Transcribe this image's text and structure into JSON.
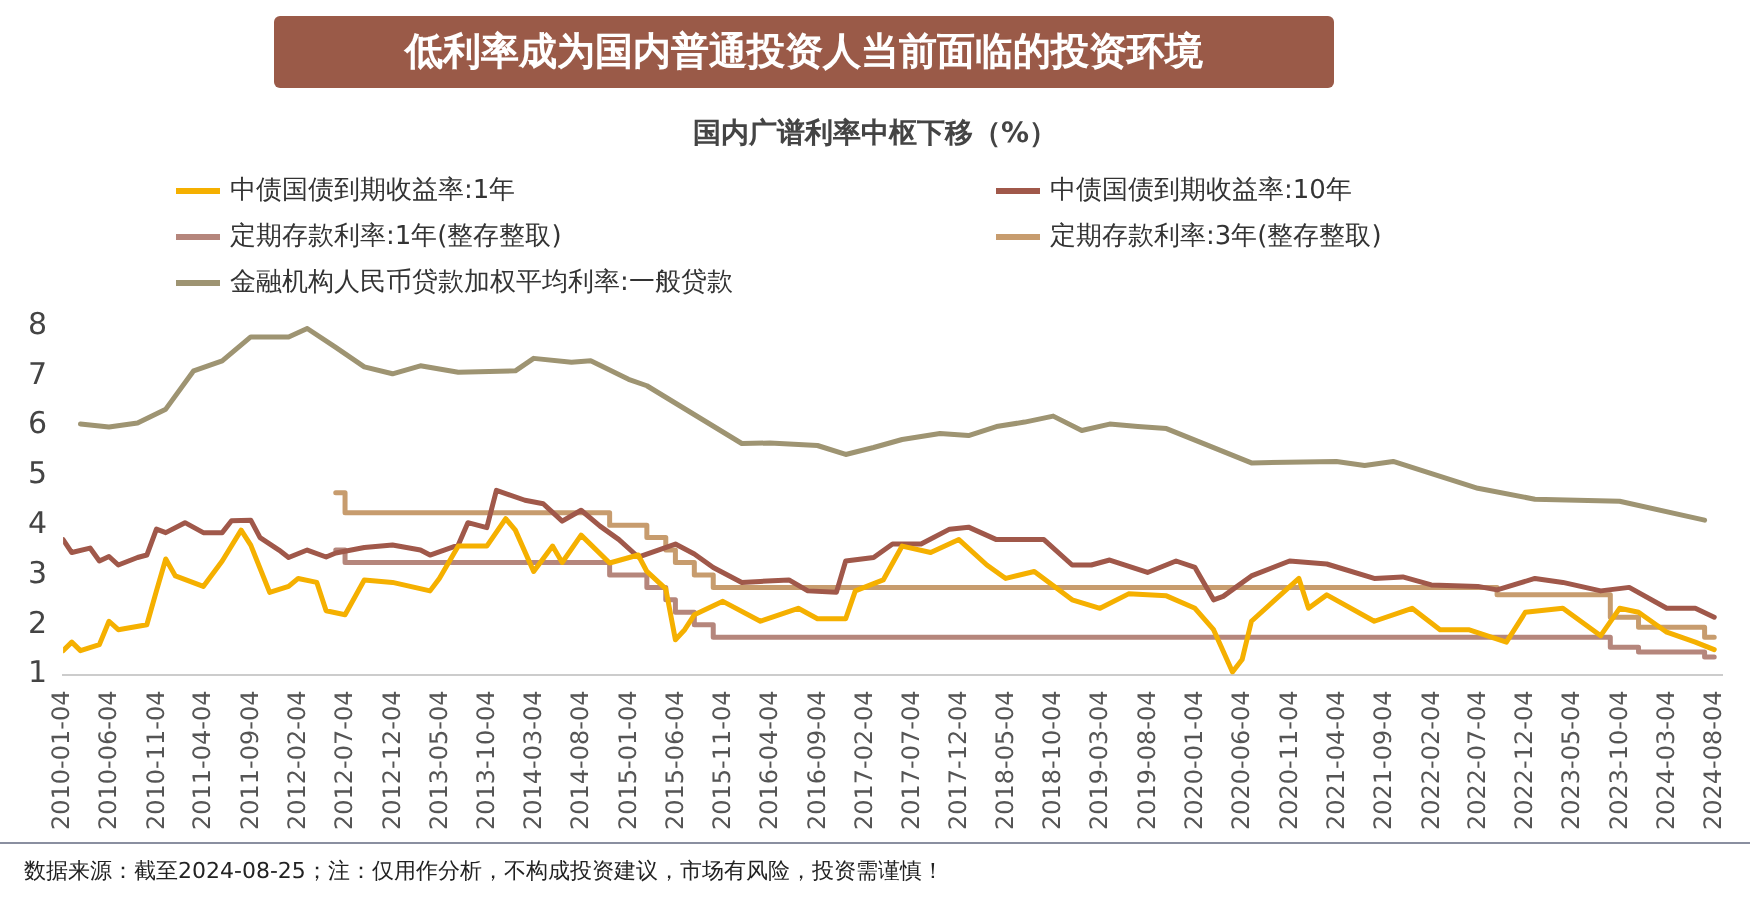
{
  "chart_data": {
    "type": "line",
    "title": "低利率成为国内普通投资人当前面临的投资环境",
    "subtitle": "国内广谱利率中枢下移（%）",
    "annotations": [
      "数据来源：截至2024-08-25；注：仅用作分析，不构成投资建议，市场有风险，投资需谨慎！"
    ],
    "legend": "top left",
    "grid": false,
    "marker": "none",
    "line_style": "solid",
    "xlim": [
      "2010-01-04",
      "2024-08-25"
    ],
    "xticks": [
      "2010-01-04",
      "2010-06-04",
      "2010-11-04",
      "2011-04-04",
      "2011-09-04",
      "2012-02-04",
      "2012-07-04",
      "2012-12-04",
      "2013-05-04",
      "2013-10-04",
      "2014-03-04",
      "2014-08-04",
      "2015-01-04",
      "2015-06-04",
      "2015-11-04",
      "2016-04-04",
      "2016-09-04",
      "2017-02-04",
      "2017-07-04",
      "2017-12-04",
      "2018-05-04",
      "2018-10-04",
      "2019-03-04",
      "2019-08-04",
      "2020-01-04",
      "2020-06-04",
      "2020-11-04",
      "2021-04-04",
      "2021-09-04",
      "2022-02-04",
      "2022-07-04",
      "2022-12-04",
      "2023-05-04",
      "2023-10-04",
      "2024-03-04",
      "2024-08-04"
    ],
    "ylim": [
      1,
      8
    ],
    "yticks": [
      1,
      2,
      3,
      4,
      5,
      6,
      7,
      8
    ],
    "series": [
      {
        "name": "中债国债到期收益率:1年",
        "color": "#f5b000",
        "x": [
          "2010-01-04",
          "2010-02",
          "2010-03",
          "2010-05",
          "2010-06",
          "2010-07",
          "2010-10",
          "2010-11",
          "2010-12",
          "2011-01",
          "2011-04",
          "2011-06",
          "2011-08",
          "2011-09",
          "2011-11",
          "2012-01",
          "2012-02",
          "2012-04",
          "2012-05",
          "2012-07",
          "2012-09",
          "2012-12",
          "2013-04",
          "2013-05",
          "2013-07",
          "2013-10",
          "2013-12",
          "2014-01",
          "2014-03",
          "2014-05",
          "2014-06",
          "2014-08",
          "2014-11",
          "2015-02",
          "2015-03",
          "2015-05",
          "2015-06",
          "2015-07",
          "2015-08",
          "2015-11",
          "2016-03",
          "2016-07",
          "2016-09",
          "2016-12",
          "2017-01",
          "2017-04",
          "2017-06",
          "2017-09",
          "2017-12",
          "2018-03",
          "2018-05",
          "2018-08",
          "2018-12",
          "2019-03",
          "2019-06",
          "2019-10",
          "2020-01",
          "2020-03",
          "2020-05",
          "2020-06",
          "2020-07",
          "2020-12",
          "2021-01",
          "2021-03",
          "2021-08",
          "2021-12",
          "2022-03",
          "2022-06",
          "2022-10",
          "2022-12",
          "2023-04",
          "2023-08",
          "2023-10",
          "2023-12",
          "2024-03",
          "2024-06",
          "2024-08"
        ],
        "values": [
          1.48,
          1.65,
          1.48,
          1.6,
          2.07,
          1.9,
          2.0,
          2.68,
          3.32,
          2.98,
          2.77,
          3.28,
          3.9,
          3.6,
          2.65,
          2.77,
          2.93,
          2.85,
          2.28,
          2.2,
          2.9,
          2.85,
          2.68,
          2.93,
          3.58,
          3.58,
          4.13,
          3.9,
          3.07,
          3.58,
          3.25,
          3.8,
          3.24,
          3.4,
          3.07,
          2.72,
          1.7,
          1.9,
          2.2,
          2.47,
          2.07,
          2.33,
          2.12,
          2.12,
          2.68,
          2.9,
          3.58,
          3.45,
          3.71,
          3.2,
          2.93,
          3.07,
          2.5,
          2.33,
          2.62,
          2.58,
          2.33,
          1.9,
          1.05,
          1.3,
          2.07,
          2.93,
          2.33,
          2.6,
          2.07,
          2.33,
          1.9,
          1.9,
          1.65,
          2.25,
          2.33,
          1.78,
          2.33,
          2.25,
          1.85,
          1.65,
          1.5
        ]
      },
      {
        "name": "中债国债到期收益率:10年",
        "color": "#a0584a",
        "x": [
          "2010-01-04",
          "2010-02",
          "2010-04",
          "2010-05",
          "2010-06",
          "2010-07",
          "2010-09",
          "2010-10",
          "2010-11",
          "2010-12",
          "2011-02",
          "2011-04",
          "2011-06",
          "2011-07",
          "2011-09",
          "2011-10",
          "2011-12",
          "2012-01",
          "2012-03",
          "2012-05",
          "2012-06",
          "2012-09",
          "2012-12",
          "2013-03",
          "2013-04",
          "2013-07",
          "2013-08",
          "2013-10",
          "2013-11",
          "2014-02",
          "2014-04",
          "2014-06",
          "2014-08",
          "2014-10",
          "2014-12",
          "2015-02",
          "2015-06",
          "2015-08",
          "2015-10",
          "2016-01",
          "2016-03",
          "2016-06",
          "2016-08",
          "2016-11",
          "2016-12",
          "2017-03",
          "2017-05",
          "2017-08",
          "2017-11",
          "2018-01",
          "2018-04",
          "2018-09",
          "2018-12",
          "2019-02",
          "2019-04",
          "2019-08",
          "2019-11",
          "2020-01",
          "2020-03",
          "2020-04",
          "2020-07",
          "2020-11",
          "2021-03",
          "2021-08",
          "2021-11",
          "2022-02",
          "2022-07",
          "2022-09",
          "2023-01",
          "2023-04",
          "2023-08",
          "2023-11",
          "2024-03",
          "2024-06",
          "2024-08"
        ],
        "values": [
          3.71,
          3.45,
          3.54,
          3.28,
          3.37,
          3.2,
          3.35,
          3.4,
          3.92,
          3.85,
          4.05,
          3.85,
          3.85,
          4.09,
          4.1,
          3.75,
          3.5,
          3.35,
          3.5,
          3.36,
          3.44,
          3.55,
          3.6,
          3.5,
          3.4,
          3.6,
          4.05,
          3.95,
          4.7,
          4.5,
          4.43,
          4.08,
          4.3,
          3.98,
          3.71,
          3.36,
          3.62,
          3.42,
          3.15,
          2.85,
          2.87,
          2.9,
          2.68,
          2.65,
          3.28,
          3.35,
          3.62,
          3.62,
          3.92,
          3.96,
          3.71,
          3.71,
          3.2,
          3.2,
          3.3,
          3.05,
          3.28,
          3.15,
          2.5,
          2.57,
          2.98,
          3.28,
          3.22,
          2.93,
          2.96,
          2.8,
          2.77,
          2.7,
          2.93,
          2.85,
          2.68,
          2.75,
          2.33,
          2.33,
          2.15
        ]
      },
      {
        "name": "定期存款利率:1年(整存整取)",
        "type": "step",
        "color": "#b5867c",
        "x": [
          "2012-06",
          "2012-07",
          "2014-11",
          "2015-03",
          "2015-05",
          "2015-06",
          "2015-08",
          "2015-10",
          "2023-09",
          "2023-12",
          "2024-07",
          "2024-08"
        ],
        "values": [
          3.5,
          3.25,
          3.0,
          2.75,
          2.5,
          2.25,
          2.0,
          1.75,
          1.55,
          1.45,
          1.35,
          1.35
        ]
      },
      {
        "name": "定期存款利率:3年(整存整取)",
        "type": "step",
        "color": "#c79c6e",
        "x": [
          "2012-06",
          "2012-07",
          "2014-11",
          "2015-03",
          "2015-05",
          "2015-06",
          "2015-08",
          "2015-10",
          "2022-09",
          "2023-09",
          "2023-12",
          "2024-07",
          "2024-08"
        ],
        "values": [
          4.65,
          4.25,
          4.0,
          3.75,
          3.5,
          3.25,
          3.0,
          2.75,
          2.6,
          2.15,
          1.95,
          1.75,
          1.75
        ]
      },
      {
        "name": "金融机构人民币贷款加权平均利率:一般贷款",
        "color": "#9e9472",
        "x": [
          "2010-03",
          "2010-06",
          "2010-09",
          "2010-12",
          "2011-03",
          "2011-06",
          "2011-09",
          "2012-01",
          "2012-03",
          "2012-06",
          "2012-09",
          "2012-12",
          "2013-03",
          "2013-07",
          "2014-01",
          "2014-03",
          "2014-07",
          "2014-09",
          "2015-01",
          "2015-03",
          "2016-01",
          "2016-04",
          "2016-09",
          "2016-12",
          "2017-03",
          "2017-06",
          "2017-10",
          "2018-01",
          "2018-04",
          "2018-07",
          "2018-10",
          "2019-01",
          "2019-04",
          "2019-07",
          "2019-10",
          "2020-07",
          "2021-04",
          "2021-07",
          "2021-10",
          "2022-07",
          "2023-01",
          "2023-10",
          "2024-07"
        ],
        "values": [
          6.03,
          5.97,
          6.05,
          6.33,
          7.1,
          7.3,
          7.78,
          7.78,
          7.95,
          7.57,
          7.18,
          7.04,
          7.2,
          7.07,
          7.1,
          7.35,
          7.27,
          7.3,
          6.93,
          6.8,
          5.64,
          5.65,
          5.6,
          5.42,
          5.56,
          5.72,
          5.84,
          5.8,
          5.98,
          6.07,
          6.19,
          5.9,
          6.03,
          5.98,
          5.94,
          5.25,
          5.28,
          5.2,
          5.28,
          4.74,
          4.52,
          4.48,
          4.1
        ]
      }
    ]
  }
}
